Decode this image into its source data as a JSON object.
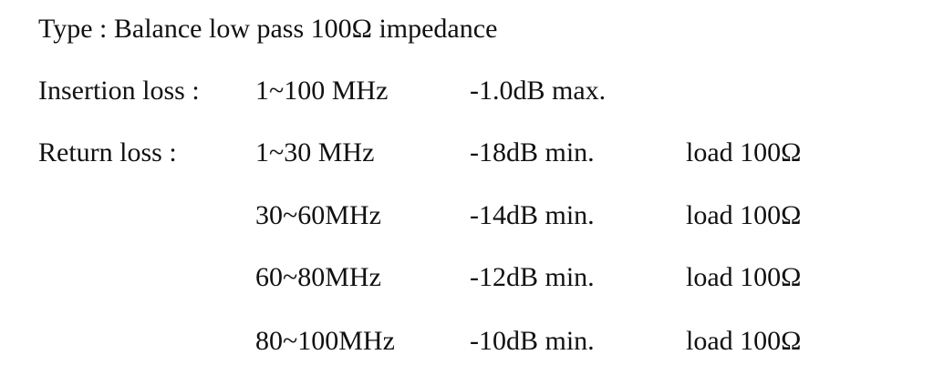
{
  "type_line": "Type : Balance low pass 100Ω impedance",
  "insertion_loss": {
    "label": "Insertion loss :",
    "range": "1~100 MHz",
    "value": "-1.0dB max."
  },
  "return_loss": {
    "label": "Return loss :",
    "rows": [
      [
        "1~30 MHz",
        "-18dB min.",
        "load 100Ω"
      ],
      [
        "30~60MHz",
        "-14dB min.",
        "load 100Ω"
      ],
      [
        "60~80MHz",
        "-12dB min.",
        "load 100Ω"
      ],
      [
        "80~100MHz",
        "-10dB min.",
        "load 100Ω"
      ]
    ]
  }
}
